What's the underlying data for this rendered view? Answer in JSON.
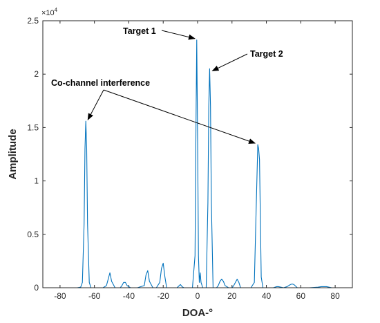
{
  "chart_data": {
    "type": "line",
    "title": "",
    "xlabel": "DOA-°",
    "ylabel": "Amplitude",
    "y_exponent_label": "×10",
    "y_exponent_power": "4",
    "xlim": [
      -90,
      90
    ],
    "ylim": [
      0,
      2.5
    ],
    "y_multiplier": 10000,
    "x_ticks": [
      -80,
      -60,
      -40,
      -20,
      0,
      20,
      40,
      60,
      80
    ],
    "x_tick_labels": [
      "-80",
      "-60",
      "-40",
      "-20",
      "0",
      "20",
      "40",
      "60",
      "80"
    ],
    "y_ticks": [
      0,
      0.5,
      1,
      1.5,
      2,
      2.5
    ],
    "y_tick_labels": [
      "0",
      "0.5",
      "1",
      "1.5",
      "2",
      "2.5"
    ],
    "grid": false,
    "line_color": "#0072BD",
    "series": [
      {
        "x": [
          -90,
          -70,
          -68,
          -67,
          -66,
          -65.5,
          -65,
          -64.5,
          -64,
          -63,
          -62,
          -55,
          -53,
          -52,
          -51,
          -50,
          -48,
          -45,
          -44,
          -43,
          -42,
          -41,
          -39,
          -35,
          -31,
          -30,
          -29,
          -28,
          -26,
          -24,
          -22,
          -21,
          -20,
          -19,
          -18,
          -16,
          -12,
          -11,
          -10,
          -9,
          -8,
          -3,
          -1.5,
          -1,
          -0.5,
          0,
          0.5,
          1,
          1.5,
          2,
          3,
          5,
          6,
          6.5,
          7,
          7.5,
          8,
          9,
          11,
          12,
          13,
          14,
          15,
          16,
          18,
          20,
          21,
          22,
          23,
          24,
          25,
          31,
          33,
          34,
          35,
          35.5,
          36,
          37,
          38,
          44,
          46,
          47,
          50,
          52,
          54,
          55,
          56,
          58,
          65,
          70,
          72,
          75,
          78,
          90
        ],
        "y": [
          0,
          0,
          0.005,
          0.05,
          0.6,
          1.3,
          1.56,
          1.3,
          0.6,
          0.05,
          0,
          0,
          0.02,
          0.08,
          0.14,
          0.06,
          0,
          0,
          0.02,
          0.05,
          0.05,
          0.02,
          0,
          0,
          0.02,
          0.12,
          0.16,
          0.06,
          0,
          0,
          0.05,
          0.18,
          0.23,
          0.1,
          0,
          0,
          0,
          0.015,
          0.03,
          0.01,
          0,
          0,
          0.3,
          1.4,
          2.32,
          1.4,
          0.3,
          0.05,
          0.14,
          0.05,
          0,
          0,
          0.8,
          1.7,
          2.05,
          1.7,
          0.8,
          0,
          0,
          0.02,
          0.06,
          0.08,
          0.06,
          0.02,
          0,
          0,
          0.02,
          0.05,
          0.08,
          0.05,
          0,
          0,
          0.05,
          0.7,
          1.34,
          1.3,
          1.2,
          0.1,
          0,
          0,
          0.01,
          0.01,
          0,
          0.01,
          0.03,
          0.035,
          0.03,
          0,
          0,
          0.005,
          0.01,
          0.01,
          0,
          0
        ]
      }
    ],
    "annotations": [
      {
        "text": "Target 1",
        "x": 0,
        "y": 2.32
      },
      {
        "text": "Target 2",
        "x": 7,
        "y": 2.05
      },
      {
        "text": "Co-channel interference",
        "targets": [
          {
            "x": -65,
            "y": 1.56
          },
          {
            "x": 35,
            "y": 1.34
          }
        ]
      }
    ]
  }
}
